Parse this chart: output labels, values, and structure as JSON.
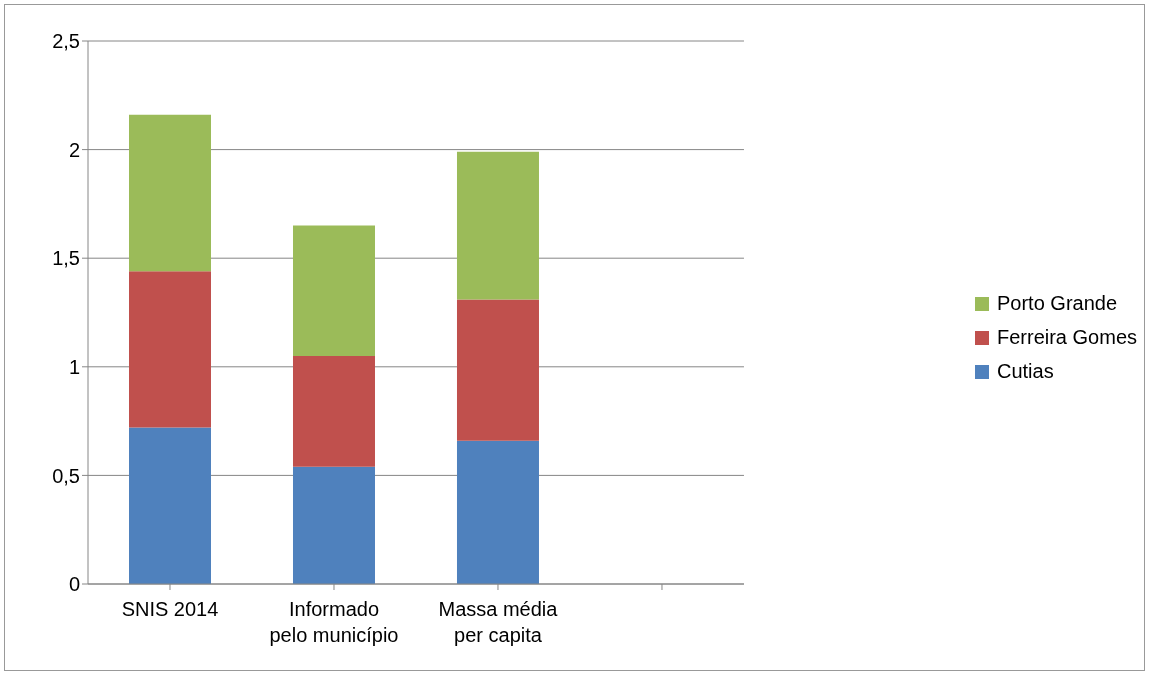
{
  "chart_data": {
    "type": "bar",
    "stacked": true,
    "categories": [
      "SNIS 2014",
      "Informado pelo município",
      "Massa média per capita",
      null
    ],
    "series": [
      {
        "name": "Cutias",
        "color": "#4f81bd",
        "values": [
          0.72,
          0.54,
          0.66,
          null
        ]
      },
      {
        "name": "Ferreira Gomes",
        "color": "#c0504d",
        "values": [
          0.72,
          0.51,
          0.65,
          null
        ]
      },
      {
        "name": "Porto Grande",
        "color": "#9bbb59",
        "values": [
          0.72,
          0.6,
          0.68,
          null
        ]
      }
    ],
    "ylim": [
      0,
      2.5
    ],
    "yticks": [
      0,
      {
        "value": 0.5,
        "label": "0,5"
      },
      1,
      {
        "value": 1.5,
        "label": "1,5"
      },
      2,
      {
        "value": 2.5,
        "label": "2,5"
      }
    ],
    "grid": "y",
    "legend": "right"
  }
}
